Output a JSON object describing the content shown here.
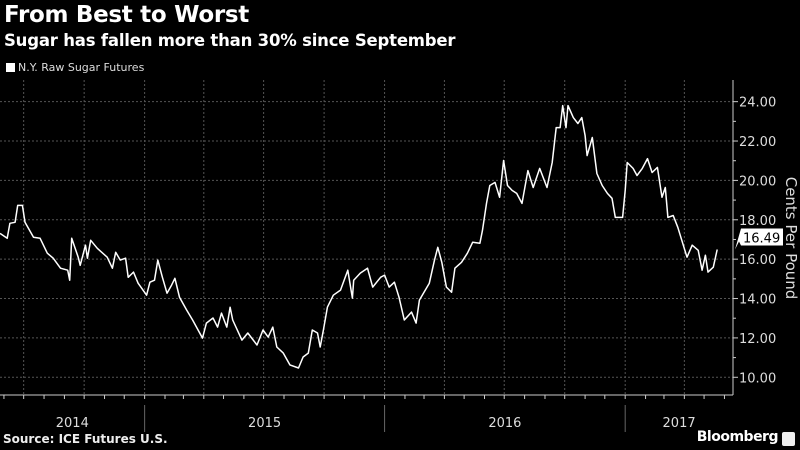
{
  "header": {
    "title": "From Best to Worst",
    "subtitle": "Sugar has fallen more than 30% since September"
  },
  "footer": {
    "source": "Source: ICE Futures U.S.",
    "brand": "Bloomberg"
  },
  "colors": {
    "background": "#000000",
    "line": "#ffffff",
    "grid": "#555555",
    "text": "#dddddd"
  },
  "chart_data": {
    "type": "line",
    "title": "From Best to Worst",
    "subtitle": "Sugar has fallen more than 30% since September",
    "ylabel": "Cents Per Pound",
    "y_axis_position": "right",
    "ylim": [
      9.1,
      25.1
    ],
    "xlim": [
      "2014-05-26",
      "2017-06-14"
    ],
    "y_ticks": [
      "10.00",
      "12.00",
      "14.00",
      "16.00",
      "18.00",
      "20.00",
      "22.00",
      "24.00"
    ],
    "x_tick_labels": [
      "2014",
      "2015",
      "2016",
      "2017"
    ],
    "grid": true,
    "legend": "top-left",
    "last_value_label": "16.49",
    "series": [
      {
        "name": "N.Y. Raw Sugar Futures",
        "x": [
          "2014-05-26",
          "2014-06-06",
          "2014-06-10",
          "2014-06-18",
          "2014-06-22",
          "2014-06-29",
          "2014-07-03",
          "2014-07-16",
          "2014-07-26",
          "2014-08-06",
          "2014-08-15",
          "2014-08-26",
          "2014-09-06",
          "2014-09-09",
          "2014-09-12",
          "2014-09-22",
          "2014-09-25",
          "2014-10-03",
          "2014-10-06",
          "2014-10-11",
          "2014-10-21",
          "2014-11-05",
          "2014-11-13",
          "2014-11-18",
          "2014-11-25",
          "2014-12-03",
          "2014-12-07",
          "2014-12-15",
          "2014-12-22",
          "2015-01-04",
          "2015-01-09",
          "2015-01-16",
          "2015-01-21",
          "2015-01-28",
          "2015-02-04",
          "2015-02-11",
          "2015-02-16",
          "2015-02-23",
          "2015-03-06",
          "2015-03-15",
          "2015-03-30",
          "2015-04-05",
          "2015-04-15",
          "2015-04-22",
          "2015-04-28",
          "2015-05-06",
          "2015-05-11",
          "2015-05-15",
          "2015-05-29",
          "2015-06-07",
          "2015-06-21",
          "2015-06-30",
          "2015-07-08",
          "2015-07-15",
          "2015-07-21",
          "2015-07-31",
          "2015-08-10",
          "2015-08-23",
          "2015-08-30",
          "2015-09-07",
          "2015-09-13",
          "2015-09-21",
          "2015-09-25",
          "2015-09-30",
          "2015-10-06",
          "2015-10-15",
          "2015-10-26",
          "2015-11-06",
          "2015-11-13",
          "2015-11-15",
          "2015-11-25",
          "2015-12-06",
          "2015-12-14",
          "2015-12-26",
          "2016-01-01",
          "2016-01-08",
          "2016-01-16",
          "2016-01-23",
          "2016-01-31",
          "2016-02-11",
          "2016-02-18",
          "2016-02-23",
          "2016-03-09",
          "2016-03-17",
          "2016-03-22",
          "2016-03-28",
          "2016-04-04",
          "2016-04-12",
          "2016-04-17",
          "2016-04-27",
          "2016-05-06",
          "2016-05-14",
          "2016-05-25",
          "2016-05-29",
          "2016-06-04",
          "2016-06-09",
          "2016-06-17",
          "2016-06-24",
          "2016-06-30",
          "2016-07-06",
          "2016-07-13",
          "2016-07-20",
          "2016-07-28",
          "2016-08-06",
          "2016-08-14",
          "2016-08-24",
          "2016-09-04",
          "2016-09-12",
          "2016-09-18",
          "2016-09-24",
          "2016-09-28",
          "2016-10-03",
          "2016-10-06",
          "2016-10-14",
          "2016-10-21",
          "2016-10-27",
          "2016-11-01",
          "2016-11-04",
          "2016-11-12",
          "2016-11-19",
          "2016-11-27",
          "2016-12-05",
          "2016-12-12",
          "2016-12-17",
          "2016-12-28",
          "2017-01-01",
          "2017-01-04",
          "2017-01-13",
          "2017-01-19",
          "2017-01-27",
          "2017-02-04",
          "2017-02-11",
          "2017-02-19",
          "2017-02-26",
          "2017-03-03",
          "2017-03-07",
          "2017-03-15",
          "2017-03-22",
          "2017-04-05",
          "2017-04-13",
          "2017-04-22",
          "2017-04-28",
          "2017-05-03",
          "2017-05-07",
          "2017-05-15",
          "2017-05-21"
        ],
        "values": [
          17.31,
          17.06,
          17.82,
          17.87,
          18.73,
          18.73,
          17.87,
          17.11,
          17.06,
          16.3,
          16.05,
          15.54,
          15.44,
          14.93,
          17.06,
          16.1,
          15.69,
          16.71,
          16.05,
          16.96,
          16.55,
          16.1,
          15.54,
          16.35,
          15.95,
          16.05,
          15.08,
          15.34,
          14.78,
          14.17,
          14.83,
          14.93,
          15.95,
          15.08,
          14.27,
          14.68,
          15.03,
          14.07,
          13.41,
          12.91,
          11.99,
          12.75,
          13.01,
          12.55,
          13.26,
          12.55,
          13.56,
          12.91,
          11.89,
          12.25,
          11.64,
          12.4,
          12.04,
          12.55,
          11.54,
          11.23,
          10.63,
          10.47,
          11.03,
          11.23,
          12.4,
          12.25,
          11.54,
          12.4,
          13.56,
          14.17,
          14.43,
          15.44,
          14.02,
          14.93,
          15.29,
          15.54,
          14.58,
          15.08,
          15.19,
          14.58,
          14.83,
          14.07,
          12.91,
          13.31,
          12.75,
          13.92,
          14.78,
          15.95,
          16.6,
          15.84,
          14.58,
          14.32,
          15.54,
          15.84,
          16.3,
          16.86,
          16.81,
          17.47,
          18.83,
          19.74,
          19.9,
          19.14,
          21.01,
          19.74,
          19.49,
          19.34,
          18.83,
          20.5,
          19.64,
          20.61,
          19.64,
          20.91,
          22.68,
          22.68,
          23.8,
          22.68,
          23.8,
          23.19,
          22.89,
          23.19,
          22.28,
          21.26,
          22.18,
          20.35,
          19.74,
          19.34,
          19.09,
          18.12,
          18.12,
          19.49,
          20.91,
          20.61,
          20.25,
          20.61,
          21.11,
          20.4,
          20.66,
          19.14,
          19.64,
          18.12,
          18.22,
          17.62,
          16.1,
          16.71,
          16.45,
          15.44,
          16.2,
          15.34,
          15.59,
          16.49
        ]
      }
    ]
  }
}
